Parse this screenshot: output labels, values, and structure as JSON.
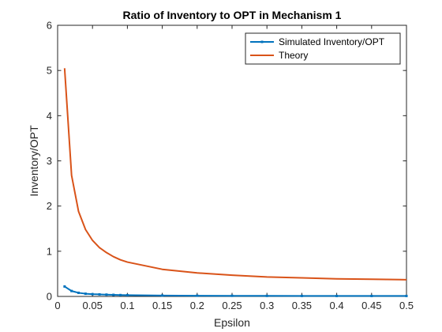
{
  "chart_data": {
    "type": "line",
    "title": "Ratio of Inventory to OPT in Mechanism 1",
    "xlabel": "Epsilon",
    "ylabel": "Inventory/OPT",
    "xlim": [
      0,
      0.5
    ],
    "ylim": [
      0,
      6
    ],
    "xticks": [
      0,
      0.05,
      0.1,
      0.15,
      0.2,
      0.25,
      0.3,
      0.35,
      0.4,
      0.45,
      0.5
    ],
    "xtick_labels": [
      "0",
      "0.05",
      "0.1",
      "0.15",
      "0.2",
      "0.25",
      "0.3",
      "0.35",
      "0.4",
      "0.45",
      "0.5"
    ],
    "yticks": [
      0,
      1,
      2,
      3,
      4,
      5,
      6
    ],
    "ytick_labels": [
      "0",
      "1",
      "2",
      "3",
      "4",
      "5",
      "6"
    ],
    "grid": false,
    "legend_position": "top-right",
    "series": [
      {
        "name": "Simulated Inventory/OPT",
        "color": "#0072BD",
        "marker": "point",
        "x": [
          0.01,
          0.02,
          0.03,
          0.04,
          0.05,
          0.06,
          0.07,
          0.08,
          0.09,
          0.1,
          0.15,
          0.2,
          0.25,
          0.3,
          0.35,
          0.4,
          0.45,
          0.5
        ],
        "y": [
          0.22,
          0.12,
          0.08,
          0.06,
          0.05,
          0.045,
          0.04,
          0.035,
          0.03,
          0.028,
          0.02,
          0.016,
          0.014,
          0.012,
          0.011,
          0.01,
          0.01,
          0.01
        ]
      },
      {
        "name": "Theory",
        "color": "#D95319",
        "marker": "none",
        "x": [
          0.01,
          0.02,
          0.03,
          0.04,
          0.05,
          0.06,
          0.07,
          0.08,
          0.09,
          0.1,
          0.15,
          0.2,
          0.25,
          0.3,
          0.35,
          0.4,
          0.45,
          0.5
        ],
        "y": [
          5.05,
          2.68,
          1.88,
          1.48,
          1.24,
          1.08,
          0.97,
          0.88,
          0.81,
          0.76,
          0.6,
          0.52,
          0.47,
          0.43,
          0.41,
          0.39,
          0.38,
          0.37
        ]
      }
    ]
  }
}
